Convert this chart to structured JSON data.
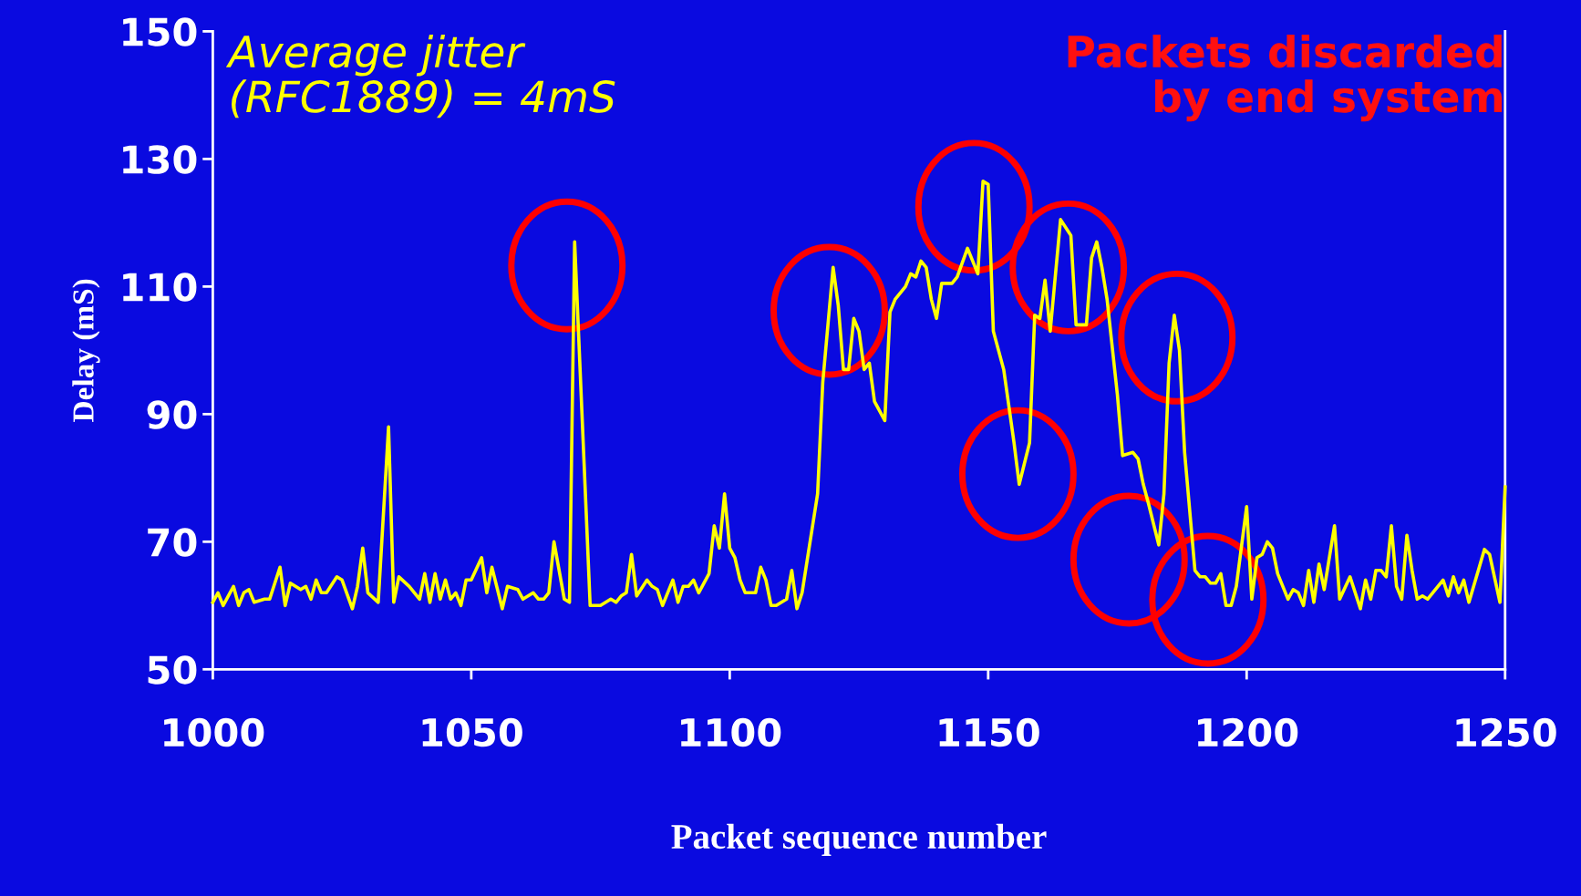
{
  "chart_data": {
    "type": "line",
    "xlabel": "Packet sequence number",
    "ylabel": "Delay (mS)",
    "xlim": [
      1000,
      1250
    ],
    "xticks": [
      1000,
      1050,
      1100,
      1150,
      1200,
      1250
    ],
    "ylim": [
      50,
      150
    ],
    "yticks": [
      50,
      70,
      90,
      110,
      130,
      150
    ],
    "grid": false,
    "legend": false,
    "marker": "none",
    "line_style": "solid",
    "annotations": [
      "Average jitter\n(RFC1889) = 4mS",
      "Packets discarded\nby end system"
    ],
    "x": [
      1000,
      1001,
      1002,
      1004,
      1005,
      1006,
      1007,
      1008,
      1010,
      1011,
      1013,
      1014,
      1015,
      1017,
      1018,
      1019,
      1020,
      1021,
      1022,
      1024,
      1025,
      1027,
      1028,
      1029,
      1030,
      1032,
      1034,
      1035,
      1036,
      1038,
      1040,
      1041,
      1042,
      1043,
      1044,
      1045,
      1046,
      1047,
      1048,
      1049,
      1050,
      1052,
      1053,
      1054,
      1056,
      1057,
      1059,
      1060,
      1062,
      1063,
      1064,
      1065,
      1066,
      1068,
      1069,
      1070,
      1072,
      1073,
      1075,
      1077,
      1078,
      1079,
      1080,
      1081,
      1082,
      1084,
      1085,
      1086,
      1087,
      1089,
      1090,
      1091,
      1092,
      1093,
      1094,
      1096,
      1097,
      1098,
      1099,
      1100,
      1101,
      1102,
      1103,
      1105,
      1106,
      1107,
      1108,
      1109,
      1111,
      1112,
      1113,
      1114,
      1117,
      1118,
      1120,
      1121,
      1122,
      1123,
      1124,
      1125,
      1126,
      1127,
      1128,
      1130,
      1131,
      1132,
      1134,
      1135,
      1136,
      1137,
      1138,
      1139,
      1140,
      1141,
      1143,
      1144,
      1146,
      1148,
      1149,
      1150,
      1151,
      1153,
      1155,
      1156,
      1158,
      1159,
      1160,
      1161,
      1162,
      1164,
      1166,
      1167,
      1169,
      1170,
      1171,
      1172,
      1173,
      1175,
      1176,
      1178,
      1179,
      1180,
      1181,
      1183,
      1184,
      1185,
      1186,
      1187,
      1188,
      1190,
      1191,
      1192,
      1193,
      1194,
      1195,
      1196,
      1197,
      1198,
      1200,
      1201,
      1202,
      1203,
      1204,
      1205,
      1206,
      1208,
      1209,
      1210,
      1211,
      1212,
      1213,
      1214,
      1215,
      1217,
      1218,
      1220,
      1221,
      1222,
      1223,
      1224,
      1225,
      1226,
      1227,
      1228,
      1229,
      1230,
      1231,
      1232,
      1233,
      1234,
      1235,
      1236,
      1238,
      1239,
      1240,
      1241,
      1242,
      1243,
      1245,
      1246,
      1247,
      1249,
      1250
    ],
    "series": [
      {
        "color": "#ffff00",
        "values": [
          60.5,
          62,
          60,
          63,
          60,
          62,
          62.5,
          60.5,
          61,
          61,
          66,
          60,
          63.5,
          62.5,
          63,
          61,
          64,
          62,
          62,
          64.5,
          64,
          59.5,
          63,
          69,
          62,
          60.5,
          88,
          60.5,
          64.5,
          63,
          61,
          65,
          60.5,
          65,
          61,
          64,
          61,
          62,
          60,
          64,
          64,
          67.5,
          62,
          66,
          59.5,
          63,
          62.5,
          61,
          62,
          61,
          61,
          62,
          70,
          61,
          60.5,
          117,
          79,
          60,
          60,
          61,
          60.5,
          61.5,
          62,
          68,
          61.5,
          64,
          63,
          62.5,
          60,
          64,
          60.5,
          63,
          63,
          64,
          62,
          65,
          72.5,
          69,
          77.5,
          69,
          67.5,
          64,
          62,
          62,
          66,
          64,
          60,
          60,
          61,
          65.5,
          59.5,
          62,
          77.5,
          95,
          113,
          107,
          97,
          97,
          105,
          103,
          97,
          98,
          92,
          89,
          106,
          108,
          110,
          112,
          111.5,
          114,
          113,
          108,
          105,
          110.5,
          110.5,
          111.5,
          116,
          112,
          126.5,
          126,
          103,
          97,
          85.5,
          79,
          85.5,
          105.5,
          105,
          111,
          103,
          120.5,
          118,
          104,
          104,
          114.5,
          117,
          113,
          108,
          93,
          83.5,
          84,
          83,
          79,
          76,
          69.5,
          77.5,
          98,
          105.5,
          100,
          84,
          65.5,
          64.5,
          64.5,
          63.5,
          63.5,
          65,
          60,
          60,
          63,
          75.5,
          61,
          67.5,
          68,
          70,
          69,
          65,
          61,
          62.5,
          62,
          60,
          65.5,
          60.5,
          66.5,
          62.5,
          72.5,
          61,
          64.5,
          62,
          59.5,
          64,
          61,
          65.5,
          65.5,
          64.5,
          72.5,
          63,
          61,
          71,
          65.5,
          61,
          61.5,
          61,
          62,
          64,
          61.5,
          64.5,
          62,
          64,
          60.5,
          66,
          68.8,
          68,
          60.5,
          78.6
        ]
      }
    ]
  }
}
